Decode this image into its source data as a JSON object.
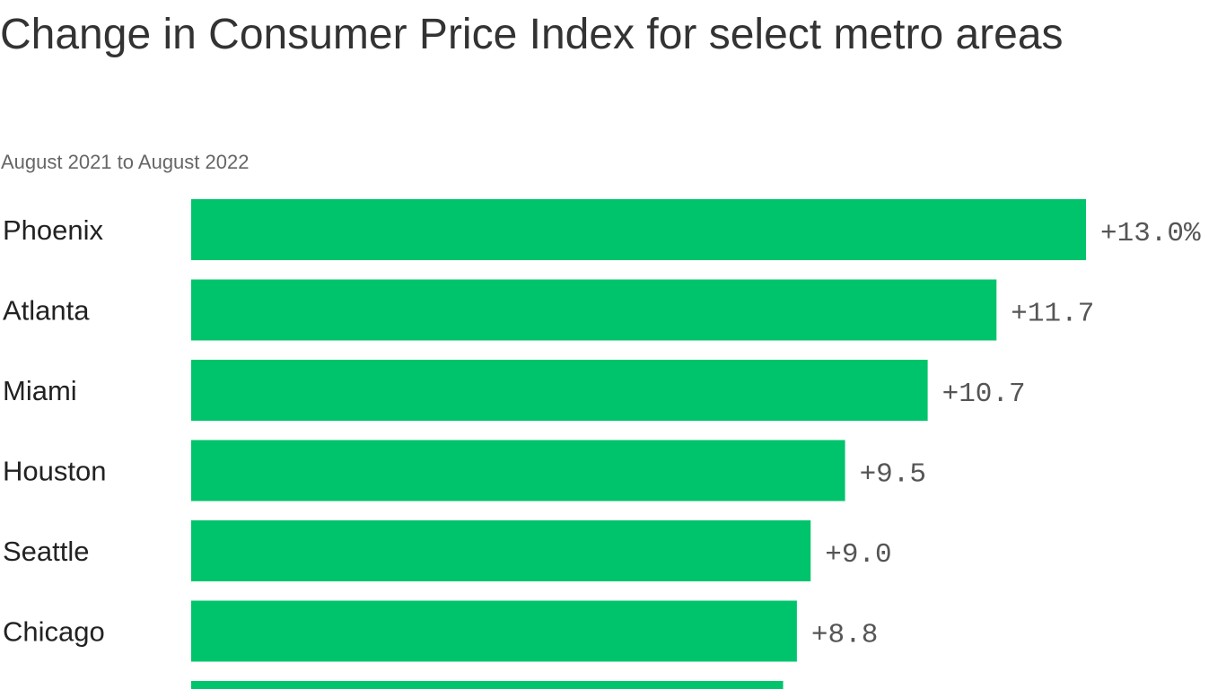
{
  "chart_data": {
    "type": "bar",
    "orientation": "horizontal",
    "title": "Change in Consumer Price Index for select metro areas",
    "subtitle": "August 2021 to August 2022",
    "categories": [
      "Phoenix",
      "Atlanta",
      "Miami",
      "Houston",
      "Seattle",
      "Chicago",
      ""
    ],
    "values": [
      13.0,
      11.7,
      10.7,
      9.5,
      9.0,
      8.8,
      8.6
    ],
    "data_labels": [
      "+13.0%",
      "+11.7",
      "+10.7",
      "+9.5",
      "+9.0",
      "+8.8",
      ""
    ],
    "unit": "%",
    "xlim": [
      0,
      13.0
    ],
    "grid": false,
    "bar_color": "#00c46b"
  }
}
